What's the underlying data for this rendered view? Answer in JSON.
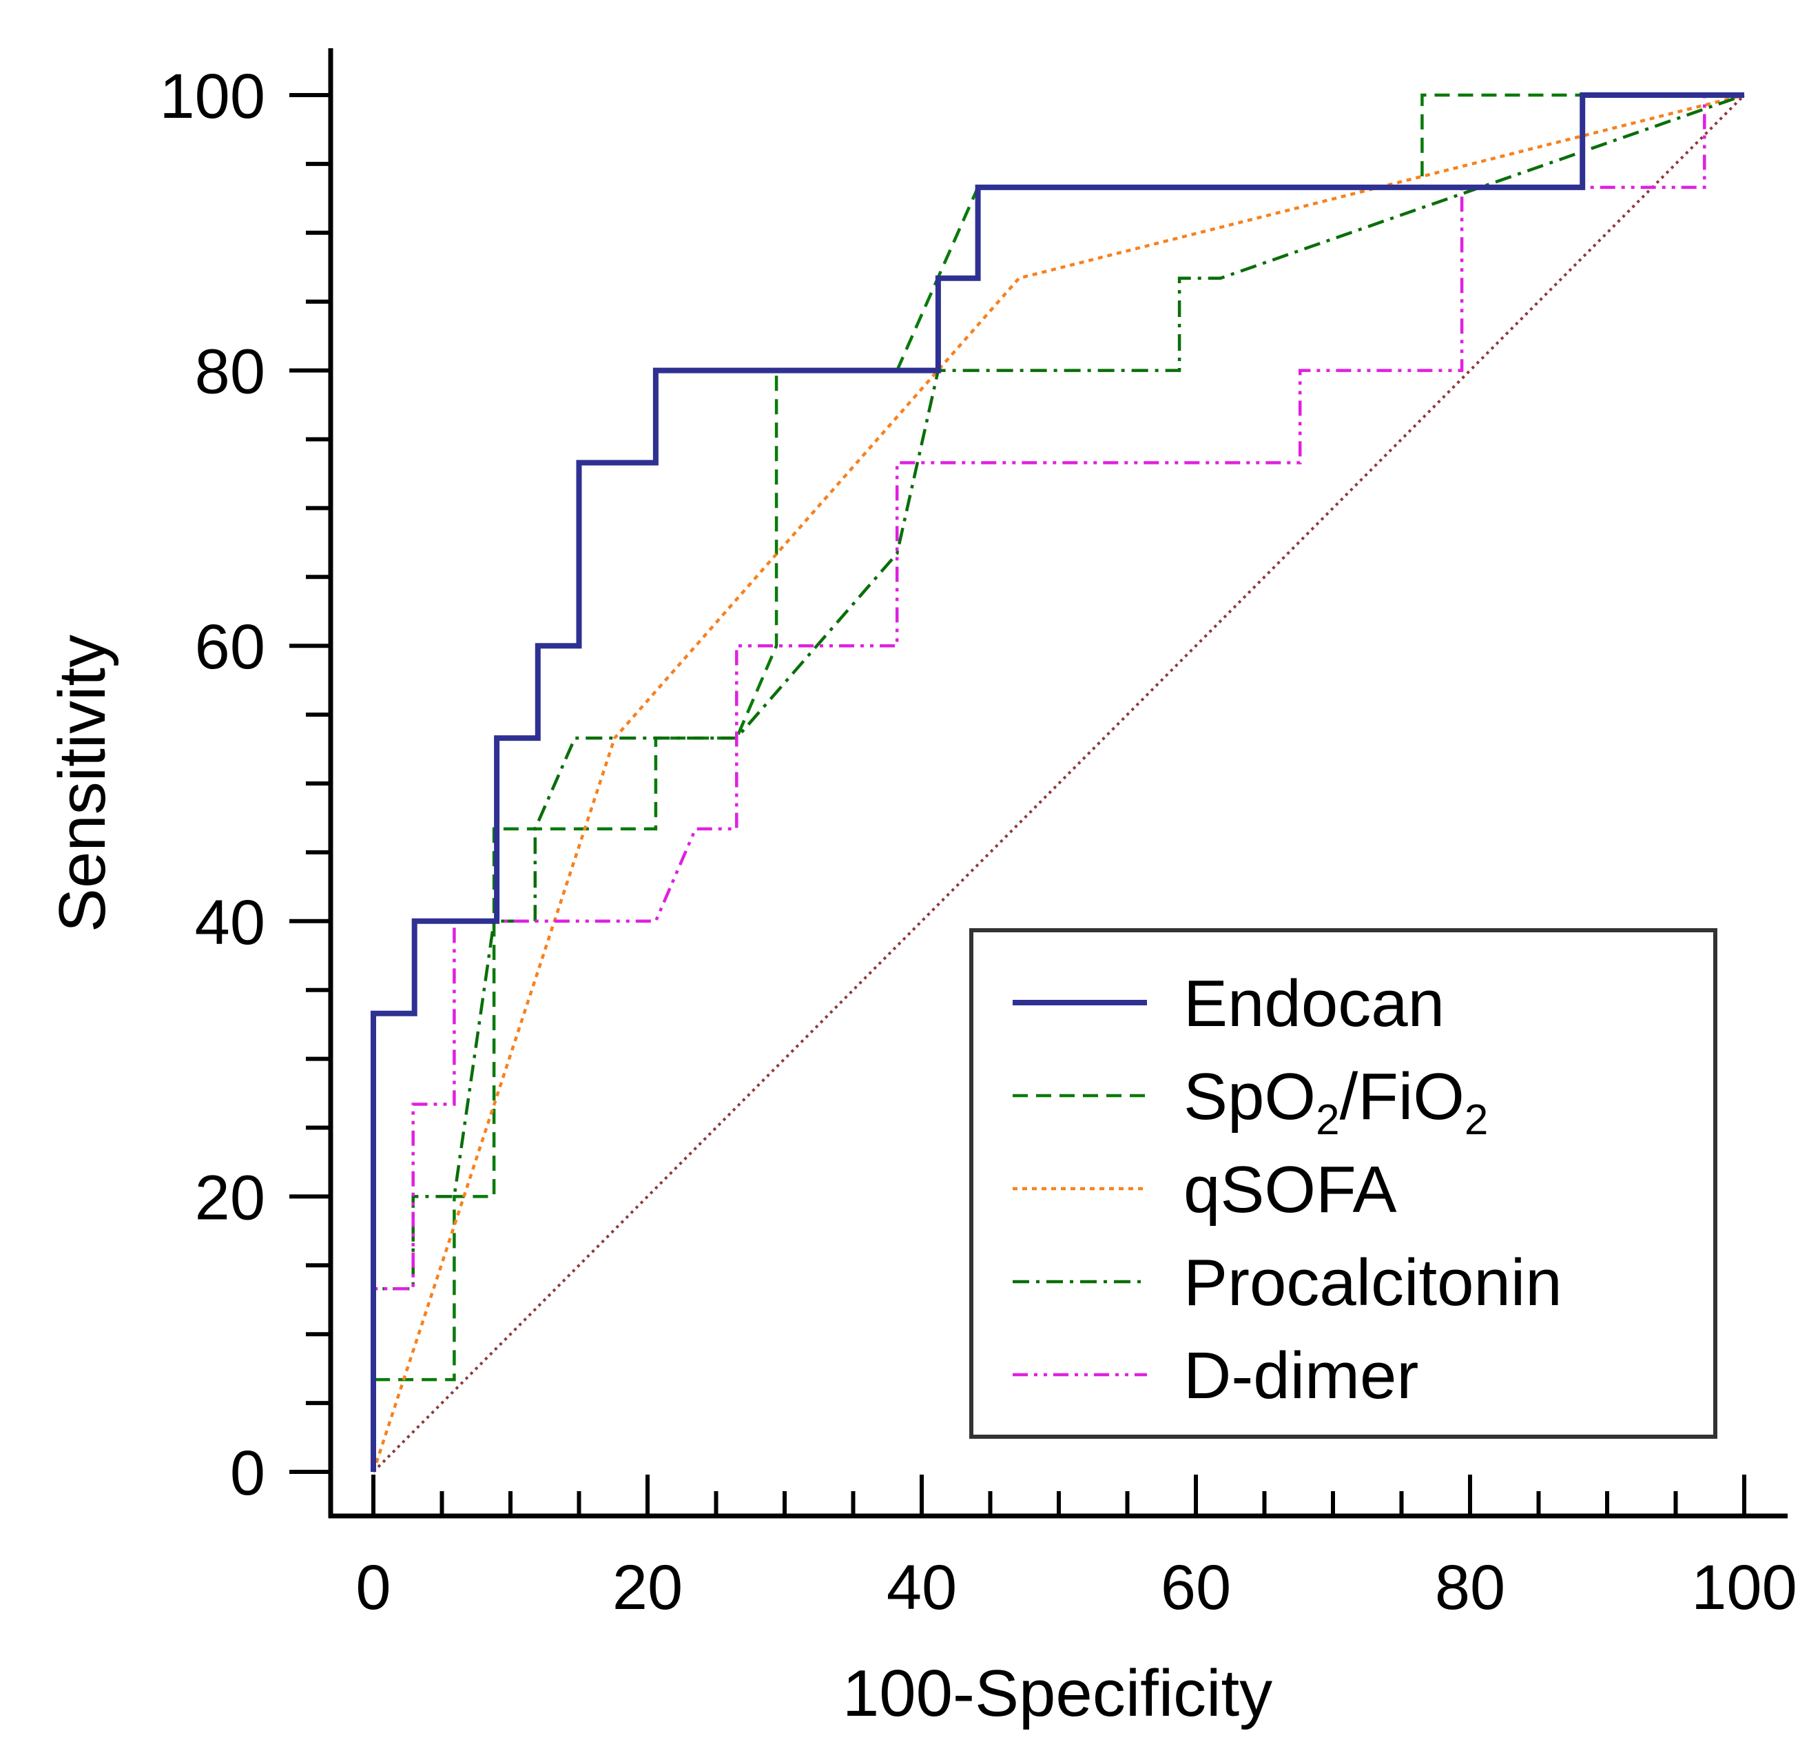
{
  "chart_data": {
    "type": "line",
    "xlabel": "100-Specificity",
    "ylabel": "Sensitivity",
    "xlim": [
      0,
      100
    ],
    "ylim": [
      0,
      100
    ],
    "xticks": [
      0,
      20,
      40,
      60,
      80,
      100
    ],
    "yticks": [
      0,
      20,
      40,
      60,
      80,
      100
    ],
    "legend_position": "bottom-right",
    "reference_line": {
      "color": "#8b3a3a",
      "points": [
        [
          0,
          0
        ],
        [
          100,
          100
        ]
      ]
    },
    "series": [
      {
        "name": "Endocan",
        "color": "#2e3192",
        "style": "solid",
        "points": [
          [
            0,
            0
          ],
          [
            0,
            33.3
          ],
          [
            3,
            33.3
          ],
          [
            3,
            40
          ],
          [
            9,
            40
          ],
          [
            9,
            53.3
          ],
          [
            12,
            53.3
          ],
          [
            12,
            60
          ],
          [
            15,
            60
          ],
          [
            15,
            73.3
          ],
          [
            20.6,
            73.3
          ],
          [
            20.6,
            80
          ],
          [
            41.2,
            80
          ],
          [
            41.2,
            86.7
          ],
          [
            44.1,
            86.7
          ],
          [
            44.1,
            93.3
          ],
          [
            88.2,
            93.3
          ],
          [
            88.2,
            100
          ],
          [
            100,
            100
          ]
        ]
      },
      {
        "name": "SpO2/FiO2",
        "name_parts": {
          "a": "SpO",
          "sub1": "2",
          "b": "/FiO",
          "sub2": "2"
        },
        "color": "#0a7a0a",
        "style": "dashed",
        "points": [
          [
            0,
            0
          ],
          [
            0,
            6.7
          ],
          [
            5.9,
            6.7
          ],
          [
            5.9,
            20
          ],
          [
            8.8,
            20
          ],
          [
            8.8,
            46.7
          ],
          [
            20.6,
            46.7
          ],
          [
            20.6,
            53.3
          ],
          [
            26.5,
            53.3
          ],
          [
            29.4,
            60
          ],
          [
            29.4,
            80
          ],
          [
            38.2,
            80
          ],
          [
            44.1,
            93.3
          ],
          [
            76.5,
            93.3
          ],
          [
            76.5,
            100
          ],
          [
            100,
            100
          ]
        ]
      },
      {
        "name": "qSOFA",
        "color": "#f58220",
        "style": "dotted",
        "points": [
          [
            0,
            0
          ],
          [
            17.6,
            53.3
          ],
          [
            47.1,
            86.7
          ],
          [
            100,
            100
          ]
        ]
      },
      {
        "name": "Procalcitonin",
        "color": "#0a6e0a",
        "style": "dashdot",
        "points": [
          [
            0,
            0
          ],
          [
            0,
            13.3
          ],
          [
            2.9,
            13.3
          ],
          [
            2.9,
            20
          ],
          [
            5.9,
            20
          ],
          [
            8.8,
            40
          ],
          [
            11.8,
            40
          ],
          [
            11.8,
            46.7
          ],
          [
            14.7,
            53.3
          ],
          [
            26.5,
            53.3
          ],
          [
            38.2,
            66.7
          ],
          [
            41.2,
            80
          ],
          [
            58.8,
            80
          ],
          [
            58.8,
            86.7
          ],
          [
            61.8,
            86.7
          ],
          [
            100,
            100
          ]
        ]
      },
      {
        "name": "D-dimer",
        "color": "#e020e0",
        "style": "dashdotdot",
        "points": [
          [
            0,
            0
          ],
          [
            0,
            13.3
          ],
          [
            2.9,
            13.3
          ],
          [
            2.9,
            26.7
          ],
          [
            5.9,
            26.7
          ],
          [
            5.9,
            40
          ],
          [
            20.6,
            40
          ],
          [
            23.5,
            46.7
          ],
          [
            26.5,
            46.7
          ],
          [
            26.5,
            60
          ],
          [
            38.2,
            60
          ],
          [
            38.2,
            73.3
          ],
          [
            67.6,
            73.3
          ],
          [
            67.6,
            80
          ],
          [
            79.4,
            80
          ],
          [
            79.4,
            93.3
          ],
          [
            97.1,
            93.3
          ],
          [
            97.1,
            100
          ],
          [
            100,
            100
          ]
        ]
      }
    ]
  }
}
